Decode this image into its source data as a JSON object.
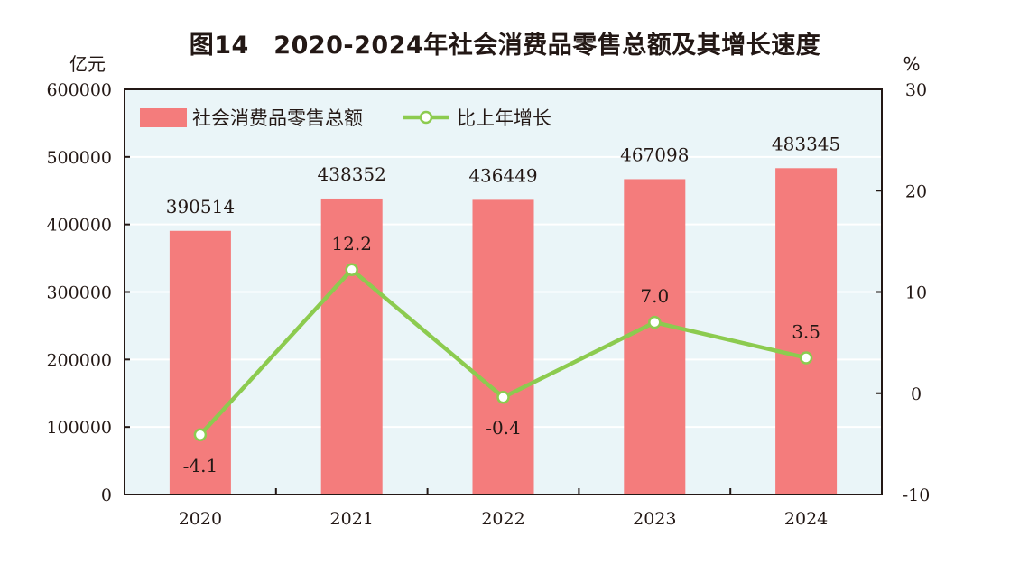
{
  "chart_data": {
    "type": "bar",
    "title": "图14　2020-2024年社会消费品零售总额及其增长速度",
    "categories": [
      "2020",
      "2021",
      "2022",
      "2023",
      "2024"
    ],
    "series": [
      {
        "name": "社会消费品零售总额",
        "type": "bar",
        "axis": "left",
        "values": [
          390514,
          438352,
          436449,
          467098,
          483345
        ],
        "labels": [
          "390514",
          "438352",
          "436449",
          "467098",
          "483345"
        ]
      },
      {
        "name": "比上年增长",
        "type": "line",
        "axis": "right",
        "values": [
          -4.1,
          12.2,
          -0.4,
          7.0,
          3.5
        ],
        "labels": [
          "-4.1",
          "12.2",
          "-0.4",
          "7.0",
          "3.5"
        ]
      }
    ],
    "ylabel_left": "亿元",
    "ylabel_right": "%",
    "ylim_left": [
      0,
      600000
    ],
    "ylim_right": [
      -10,
      30
    ],
    "yticks_left": [
      "0",
      "100000",
      "200000",
      "300000",
      "400000",
      "500000",
      "600000"
    ],
    "yticks_right": [
      "-10",
      "0",
      "10",
      "20",
      "30"
    ],
    "grid": true,
    "legend_position": "top-left",
    "colors": {
      "bar": "#f47c7c",
      "line": "#8ccb4f",
      "plot_bg": "#eaf5f8",
      "grid": "#ffffff",
      "axis": "#231815"
    }
  }
}
